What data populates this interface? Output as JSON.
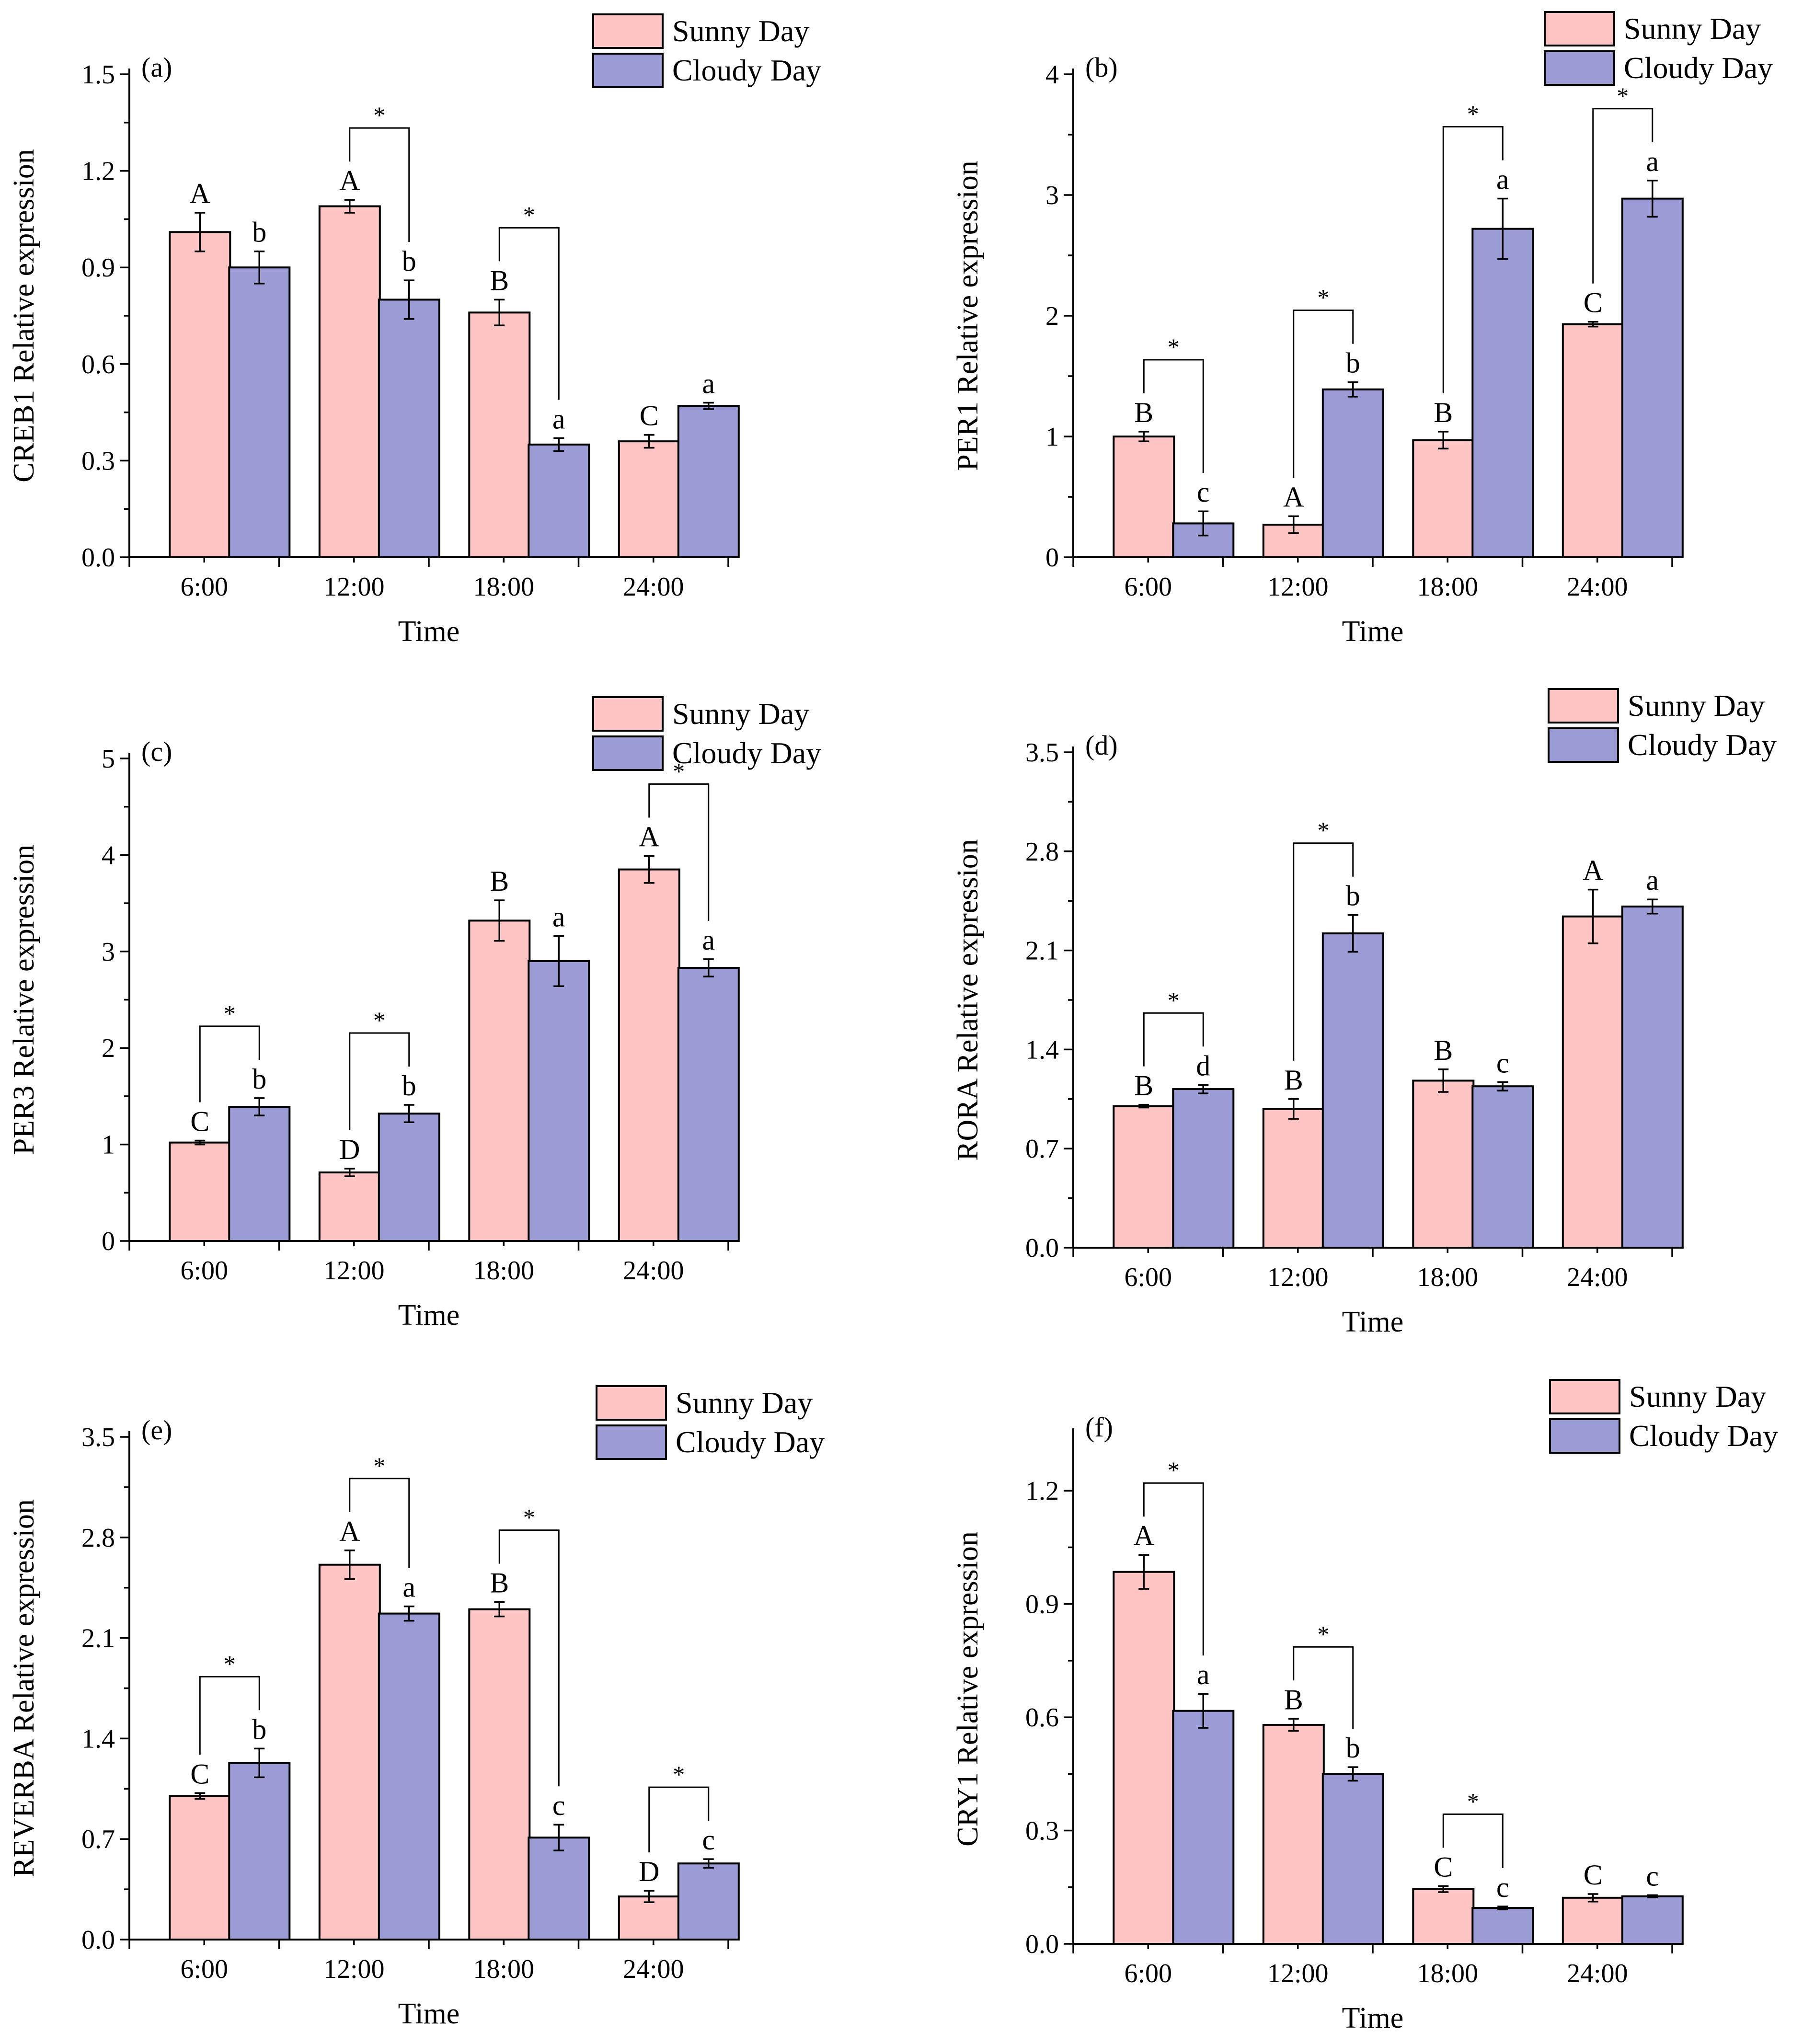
{
  "colors": {
    "sunny": "#ffc4c4",
    "cloudy": "#9b9bd6",
    "axis": "#000000"
  },
  "legend": {
    "sunny_label": "Sunny  Day",
    "cloudy_label": "Cloudy Day",
    "placement": "top-right"
  },
  "chart_data": [
    {
      "id": "a",
      "panel_label": "(a)",
      "type": "bar",
      "xlabel": "Time",
      "ylabel": "CREB1 Relative expression",
      "categories": [
        "6:00",
        "12:00",
        "18:00",
        "24:00"
      ],
      "ylim": [
        0,
        1.5
      ],
      "yticks": [
        "0.0",
        "0.3",
        "0.6",
        "0.9",
        "1.2",
        "1.5"
      ],
      "series": [
        {
          "name": "Sunny Day",
          "values": [
            1.01,
            1.09,
            0.76,
            0.36
          ],
          "errors": [
            0.06,
            0.02,
            0.04,
            0.02
          ],
          "letters": [
            "A",
            "A",
            "B",
            "C"
          ]
        },
        {
          "name": "Cloudy Day",
          "values": [
            0.9,
            0.8,
            0.35,
            0.47
          ],
          "errors": [
            0.05,
            0.06,
            0.02,
            0.01
          ],
          "letters": [
            "b",
            "b",
            "a",
            "a"
          ]
        }
      ],
      "significance": [
        false,
        true,
        true,
        false
      ],
      "sig_label": "*"
    },
    {
      "id": "b",
      "panel_label": "(b)",
      "type": "bar",
      "xlabel": "Time",
      "ylabel": "PER1 Relative expression",
      "categories": [
        "6:00",
        "12:00",
        "18:00",
        "24:00"
      ],
      "ylim": [
        0,
        4
      ],
      "yticks": [
        "0",
        "1",
        "2",
        "3",
        "4"
      ],
      "series": [
        {
          "name": "Sunny Day",
          "values": [
            1.0,
            0.27,
            0.97,
            1.93
          ],
          "errors": [
            0.04,
            0.07,
            0.07,
            0.02
          ],
          "letters": [
            "B",
            "A",
            "B",
            "C"
          ]
        },
        {
          "name": "Cloudy Day",
          "values": [
            0.28,
            1.39,
            2.72,
            2.97
          ],
          "errors": [
            0.1,
            0.06,
            0.25,
            0.15
          ],
          "letters": [
            "c",
            "b",
            "a",
            "a"
          ]
        }
      ],
      "significance": [
        true,
        true,
        true,
        true
      ],
      "sig_label": "*"
    },
    {
      "id": "c",
      "panel_label": "(c)",
      "type": "bar",
      "xlabel": "Time",
      "ylabel": "PER3 Relative expression",
      "categories": [
        "6:00",
        "12:00",
        "18:00",
        "24:00"
      ],
      "ylim": [
        0,
        5
      ],
      "yticks": [
        "0",
        "1",
        "2",
        "3",
        "4",
        "5"
      ],
      "series": [
        {
          "name": "Sunny Day",
          "values": [
            1.02,
            0.71,
            3.32,
            3.85
          ],
          "errors": [
            0.02,
            0.04,
            0.21,
            0.14
          ],
          "letters": [
            "C",
            "D",
            "B",
            "A"
          ]
        },
        {
          "name": "Cloudy Day",
          "values": [
            1.39,
            1.32,
            2.9,
            2.83
          ],
          "errors": [
            0.09,
            0.09,
            0.26,
            0.09
          ],
          "letters": [
            "b",
            "b",
            "a",
            "a"
          ]
        }
      ],
      "significance": [
        true,
        true,
        false,
        true
      ],
      "sig_label": "*"
    },
    {
      "id": "d",
      "panel_label": "(d)",
      "type": "bar",
      "xlabel": "Time",
      "ylabel": "RORA Relative expression",
      "categories": [
        "6:00",
        "12:00",
        "18:00",
        "24:00"
      ],
      "ylim": [
        0,
        3.5
      ],
      "yticks": [
        "0.0",
        "0.7",
        "1.4",
        "2.1",
        "2.8",
        "3.5"
      ],
      "series": [
        {
          "name": "Sunny Day",
          "values": [
            1.0,
            0.98,
            1.18,
            2.34
          ],
          "errors": [
            0.01,
            0.07,
            0.08,
            0.19
          ],
          "letters": [
            "B",
            "B",
            "B",
            "A"
          ]
        },
        {
          "name": "Cloudy Day",
          "values": [
            1.12,
            2.22,
            1.14,
            2.41
          ],
          "errors": [
            0.03,
            0.13,
            0.03,
            0.05
          ],
          "letters": [
            "d",
            "b",
            "c",
            "a"
          ]
        }
      ],
      "significance": [
        true,
        true,
        false,
        false
      ],
      "sig_label": "*"
    },
    {
      "id": "e",
      "panel_label": "(e)",
      "type": "bar",
      "xlabel": "Time",
      "ylabel": "REVERBA Relative expression",
      "categories": [
        "6:00",
        "12:00",
        "18:00",
        "24:00"
      ],
      "ylim": [
        0,
        3.5
      ],
      "yticks": [
        "0.0",
        "0.7",
        "1.4",
        "2.1",
        "2.8",
        "3.5"
      ],
      "series": [
        {
          "name": "Sunny Day",
          "values": [
            1.0,
            2.61,
            2.3,
            0.3
          ],
          "errors": [
            0.02,
            0.1,
            0.05,
            0.04
          ],
          "letters": [
            "C",
            "A",
            "B",
            "D"
          ]
        },
        {
          "name": "Cloudy Day",
          "values": [
            1.23,
            2.27,
            0.71,
            0.53
          ],
          "errors": [
            0.1,
            0.05,
            0.09,
            0.03
          ],
          "letters": [
            "b",
            "a",
            "c",
            "c"
          ]
        }
      ],
      "significance": [
        true,
        true,
        true,
        true
      ],
      "sig_label": "*"
    },
    {
      "id": "f",
      "panel_label": "(f)",
      "type": "bar",
      "xlabel": "Time",
      "ylabel": "CRY1 Relative expression",
      "categories": [
        "6:00",
        "12:00",
        "18:00",
        "24:00"
      ],
      "ylim": [
        0,
        1.35
      ],
      "yticks": [
        "0.0",
        "0.3",
        "0.6",
        "0.9",
        "1.2"
      ],
      "series": [
        {
          "name": "Sunny Day",
          "values": [
            0.985,
            0.58,
            0.145,
            0.122
          ],
          "errors": [
            0.045,
            0.016,
            0.008,
            0.01
          ],
          "letters": [
            "A",
            "B",
            "C",
            "C"
          ]
        },
        {
          "name": "Cloudy Day",
          "values": [
            0.617,
            0.45,
            0.095,
            0.126
          ],
          "errors": [
            0.045,
            0.018,
            0.004,
            0.003
          ],
          "letters": [
            "a",
            "b",
            "c",
            "c"
          ]
        }
      ],
      "significance": [
        true,
        true,
        true,
        false
      ],
      "sig_label": "*"
    }
  ]
}
